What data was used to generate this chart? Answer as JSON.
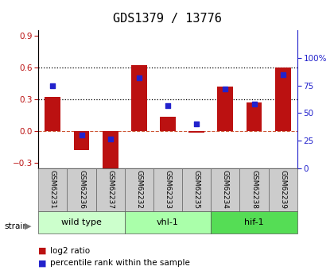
{
  "title": "GDS1379 / 13776",
  "samples": [
    "GSM62231",
    "GSM62236",
    "GSM62237",
    "GSM62232",
    "GSM62233",
    "GSM62235",
    "GSM62234",
    "GSM62238",
    "GSM62239"
  ],
  "log2_ratio": [
    0.32,
    -0.18,
    -0.4,
    0.62,
    0.14,
    -0.01,
    0.42,
    0.27,
    0.6
  ],
  "percentile_rank": [
    75,
    30,
    27,
    82,
    57,
    40,
    72,
    58,
    85
  ],
  "groups": [
    {
      "label": "wild type",
      "start": 0,
      "end": 3,
      "color": "#ccffcc"
    },
    {
      "label": "vhl-1",
      "start": 3,
      "end": 6,
      "color": "#aaffaa"
    },
    {
      "label": "hif-1",
      "start": 6,
      "end": 9,
      "color": "#55dd55"
    }
  ],
  "ylim_left": [
    -0.35,
    0.95
  ],
  "ylim_right": [
    0,
    125
  ],
  "yticks_left": [
    -0.3,
    0.0,
    0.3,
    0.6,
    0.9
  ],
  "yticks_right": [
    0,
    25,
    50,
    75,
    100
  ],
  "ytick_labels_right": [
    "0",
    "25",
    "50",
    "75",
    "100%"
  ],
  "hlines": [
    0.3,
    0.6
  ],
  "bar_color": "#bb1111",
  "dot_color": "#2222cc",
  "zero_line_color": "#cc5533",
  "bar_width": 0.55,
  "title_fontsize": 11,
  "tick_fontsize": 7.5,
  "label_fontsize": 6.5,
  "group_fontsize": 8,
  "legend_fontsize": 7.5
}
